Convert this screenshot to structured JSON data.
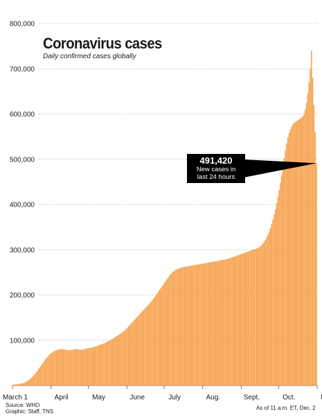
{
  "chart_data": {
    "type": "bar",
    "title": "Coronavirus cases",
    "subtitle": "Daily confirmed cases globally",
    "ylim": [
      0,
      800000
    ],
    "yticks": [
      "100,000",
      "200,000",
      "300,000",
      "400,000",
      "500,000",
      "600,000",
      "700,000",
      "800,000"
    ],
    "ytick_values": [
      100000,
      200000,
      300000,
      400000,
      500000,
      600000,
      700000,
      800000
    ],
    "month_labels": [
      {
        "label": "March 1",
        "day": 0
      },
      {
        "label": "April",
        "day": 31
      },
      {
        "label": "May",
        "day": 61
      },
      {
        "label": "June",
        "day": 92
      },
      {
        "label": "July",
        "day": 122
      },
      {
        "label": "Aug.",
        "day": 153
      },
      {
        "label": "Sept.",
        "day": 184
      },
      {
        "label": "Oct.",
        "day": 214
      },
      {
        "label": "Nov.",
        "day": 245
      }
    ],
    "grid": true,
    "color": "#f5a04a",
    "x_start": "March 1",
    "x_end": "Dec. 2",
    "values": [
      2000,
      2000,
      2500,
      2500,
      3000,
      3500,
      4000,
      4500,
      5000,
      6000,
      7500,
      9000,
      10500,
      12500,
      15000,
      17500,
      20000,
      23500,
      27000,
      30000,
      34000,
      38000,
      42000,
      46000,
      50000,
      54000,
      58000,
      61000,
      64000,
      67000,
      70000,
      72000,
      74000,
      76000,
      77000,
      78000,
      79000,
      80000,
      80000,
      81000,
      80000,
      80000,
      79000,
      79000,
      78000,
      78000,
      78000,
      79000,
      79000,
      80000,
      80000,
      81000,
      80000,
      80000,
      79000,
      79000,
      80000,
      80000,
      81000,
      82000,
      82000,
      83000,
      83000,
      84000,
      84000,
      85000,
      86000,
      87000,
      88000,
      89000,
      90000,
      91000,
      92000,
      93000,
      94000,
      96000,
      97000,
      99000,
      100000,
      102000,
      103000,
      105000,
      107000,
      109000,
      110000,
      112000,
      114000,
      116000,
      118000,
      120000,
      122000,
      125000,
      128000,
      131000,
      134000,
      137000,
      140000,
      143000,
      146000,
      149000,
      152000,
      155000,
      158000,
      161000,
      164000,
      167000,
      170000,
      173000,
      176000,
      179000,
      182000,
      185000,
      188000,
      192000,
      196000,
      200000,
      204000,
      208000,
      212000,
      216000,
      220000,
      224000,
      228000,
      232000,
      236000,
      240000,
      244000,
      247000,
      250000,
      252000,
      254000,
      256000,
      257000,
      258000,
      259000,
      260000,
      261000,
      262000,
      262000,
      263000,
      263000,
      264000,
      264000,
      265000,
      265000,
      266000,
      266000,
      267000,
      267000,
      268000,
      268000,
      269000,
      269000,
      270000,
      270000,
      271000,
      271000,
      272000,
      272000,
      273000,
      273000,
      274000,
      274000,
      275000,
      275000,
      276000,
      276000,
      277000,
      277000,
      278000,
      278000,
      279000,
      279000,
      280000,
      281000,
      282000,
      283000,
      284000,
      285000,
      286000,
      287000,
      288000,
      289000,
      290000,
      291000,
      292000,
      293000,
      294000,
      295000,
      296000,
      297000,
      298000,
      299000,
      300000,
      301000,
      302000,
      303000,
      304000,
      306000,
      308000,
      311000,
      314000,
      318000,
      322000,
      327000,
      333000,
      340000,
      348000,
      357000,
      367000,
      378000,
      390000,
      403000,
      417000,
      432000,
      448000,
      465000,
      483000,
      502000,
      520000,
      535000,
      548000,
      558000,
      566000,
      572000,
      577000,
      580000,
      582000,
      584000,
      586000,
      588000,
      590000,
      592000,
      595000,
      600000,
      610000,
      625000,
      645000,
      670000,
      700000,
      740000,
      680000,
      620000,
      560000,
      491420
    ],
    "annotation": {
      "value": "491,420",
      "line1": "New cases in",
      "line2": "last 24 hours"
    }
  },
  "footer": {
    "source": "Source: WHO",
    "graphic": "Graphic: Staff, TNS",
    "asof": "As of 11 a.m. ET, Dec. 2"
  }
}
